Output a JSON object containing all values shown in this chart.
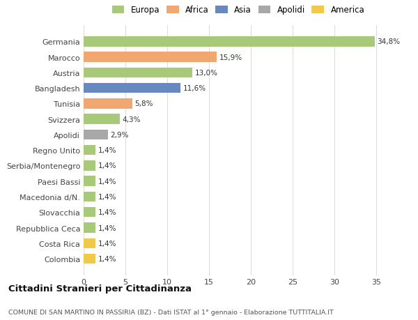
{
  "categories": [
    "Colombia",
    "Costa Rica",
    "Repubblica Ceca",
    "Slovacchia",
    "Macedonia d/N.",
    "Paesi Bassi",
    "Serbia/Montenegro",
    "Regno Unito",
    "Apolidi",
    "Svizzera",
    "Tunisia",
    "Bangladesh",
    "Austria",
    "Marocco",
    "Germania"
  ],
  "values": [
    1.4,
    1.4,
    1.4,
    1.4,
    1.4,
    1.4,
    1.4,
    1.4,
    2.9,
    4.3,
    5.8,
    11.6,
    13.0,
    15.9,
    34.8
  ],
  "colors": [
    "#f0c84a",
    "#f0c84a",
    "#a8c87a",
    "#a8c87a",
    "#a8c87a",
    "#a8c87a",
    "#a8c87a",
    "#a8c87a",
    "#a8a8a8",
    "#a8c87a",
    "#f0a870",
    "#6888c0",
    "#a8c87a",
    "#f0a870",
    "#a8c87a"
  ],
  "labels": [
    "1,4%",
    "1,4%",
    "1,4%",
    "1,4%",
    "1,4%",
    "1,4%",
    "1,4%",
    "1,4%",
    "2,9%",
    "4,3%",
    "5,8%",
    "11,6%",
    "13,0%",
    "15,9%",
    "34,8%"
  ],
  "legend_labels": [
    "Europa",
    "Africa",
    "Asia",
    "Apolidi",
    "America"
  ],
  "legend_colors": [
    "#a8c87a",
    "#f0a870",
    "#6888c0",
    "#a8a8a8",
    "#f0c84a"
  ],
  "title": "Cittadini Stranieri per Cittadinanza",
  "subtitle": "COMUNE DI SAN MARTINO IN PASSIRIA (BZ) - Dati ISTAT al 1° gennaio - Elaborazione TUTTITALIA.IT",
  "xlim": [
    0,
    37
  ],
  "xticks": [
    0,
    5,
    10,
    15,
    20,
    25,
    30,
    35
  ],
  "background_color": "#ffffff",
  "grid_color": "#dddddd"
}
